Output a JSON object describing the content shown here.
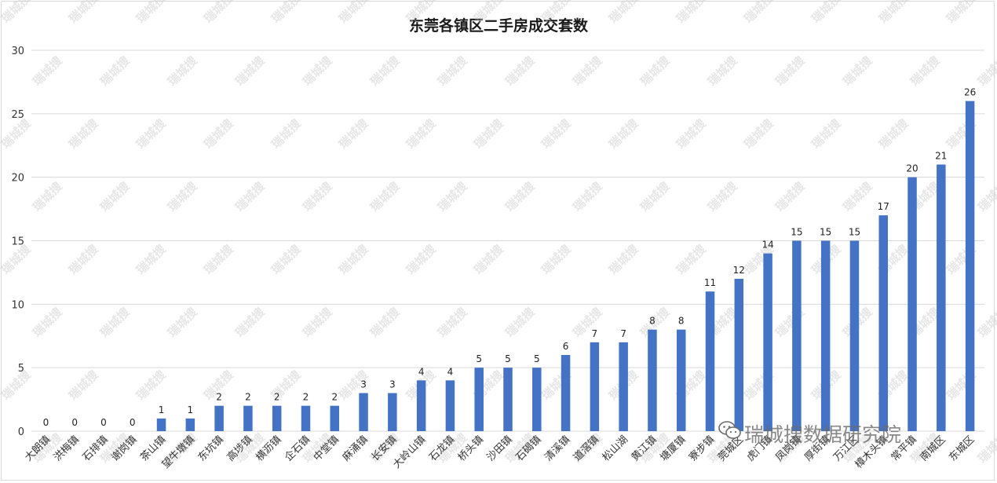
{
  "chart_data": {
    "type": "bar",
    "title": "东莞各镇区二手房成交套数",
    "categories": [
      "大朗镇",
      "洪梅镇",
      "石排镇",
      "谢岗镇",
      "茶山镇",
      "望牛墩镇",
      "东坑镇",
      "高埗镇",
      "横沥镇",
      "企石镇",
      "中堂镇",
      "麻涌镇",
      "长安镇",
      "大岭山镇",
      "石龙镇",
      "桥头镇",
      "沙田镇",
      "石碣镇",
      "清溪镇",
      "道滘镇",
      "松山湖",
      "黄江镇",
      "塘厦镇",
      "寮步镇",
      "莞城区",
      "虎门镇",
      "凤岗镇",
      "厚街镇",
      "万江区",
      "樟木头镇",
      "常平镇",
      "南城区",
      "东城区"
    ],
    "values": [
      0,
      0,
      0,
      0,
      1,
      1,
      2,
      2,
      2,
      2,
      2,
      3,
      3,
      4,
      4,
      5,
      5,
      5,
      6,
      7,
      7,
      8,
      8,
      11,
      12,
      14,
      15,
      15,
      15,
      17,
      20,
      21,
      26
    ],
    "ylim": [
      0,
      30
    ],
    "yticks": [
      0,
      5,
      10,
      15,
      20,
      25,
      30
    ],
    "grid": true,
    "legend": "none",
    "bar_color": "#4472c4"
  },
  "watermark": {
    "text": "瑞城搜数据研究院",
    "tile_text": "瑞城搜"
  },
  "icons": {
    "wechat": "wechat-icon"
  }
}
